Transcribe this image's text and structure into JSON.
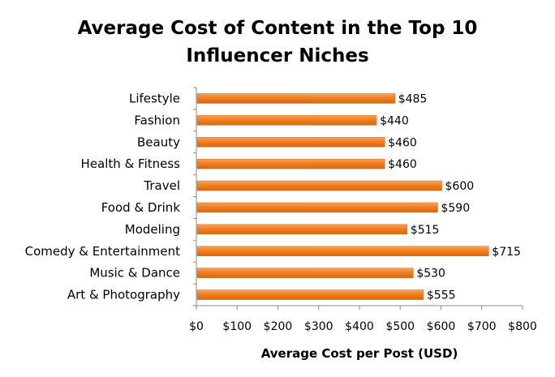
{
  "chart_data": {
    "type": "bar",
    "orientation": "horizontal",
    "title_lines": [
      "Average Cost of Content in the Top 10",
      "Influencer Niches"
    ],
    "categories": [
      "Lifestyle",
      "Fashion",
      "Beauty",
      "Health & Fitness",
      "Travel",
      "Food & Drink",
      "Modeling",
      "Comedy & Entertainment",
      "Music & Dance",
      "Art & Photography"
    ],
    "values": [
      485,
      440,
      460,
      460,
      600,
      590,
      515,
      715,
      530,
      555
    ],
    "value_labels": [
      "$485",
      "$440",
      "$460",
      "$460",
      "$600",
      "$590",
      "$515",
      "$715",
      "$530",
      "$555"
    ],
    "xlabel": "Average Cost per Post (USD)",
    "xlim": [
      0,
      800
    ],
    "xticks": [
      0,
      100,
      200,
      300,
      400,
      500,
      600,
      700,
      800
    ],
    "xtick_labels": [
      "$0",
      "$100",
      "$200",
      "$300",
      "$400",
      "$500",
      "$600",
      "$700",
      "$800"
    ],
    "bar_color": "#f07f21",
    "grid": false,
    "legend": "none"
  }
}
